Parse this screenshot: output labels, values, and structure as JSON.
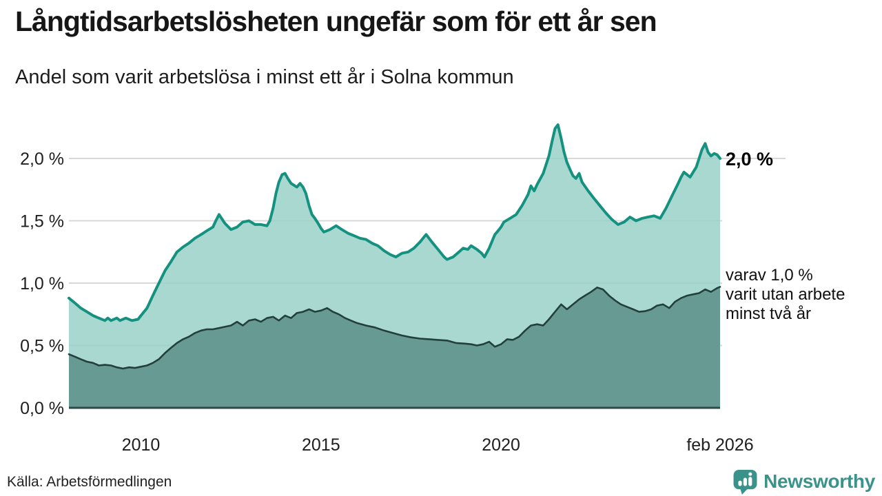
{
  "footer": {
    "source": "Källa: Arbetsförmedlingen",
    "brand": "Newsworthy",
    "brand_color": "#3a938a"
  },
  "chart_data": {
    "type": "area",
    "title": "Långtidsarbetslösheten ungefär som för ett år sen",
    "subtitle": "Andel som varit arbetslösa i minst ett år i Solna kommun",
    "unit": "%",
    "xlim": [
      2008.0,
      2026.083
    ],
    "ylim": [
      0,
      2.3
    ],
    "grid": true,
    "legend_position": "right-annotations",
    "colors": {
      "grid": "#d8d8d8",
      "axis": "#2b4945",
      "tick_text": "#202020"
    },
    "y_ticks": [
      {
        "value": 0.0,
        "label": "0,0 %"
      },
      {
        "value": 0.5,
        "label": "0,5 %"
      },
      {
        "value": 1.0,
        "label": "1,0 %"
      },
      {
        "value": 1.5,
        "label": "1,5 %"
      },
      {
        "value": 2.0,
        "label": "2,0 %"
      }
    ],
    "x_ticks": [
      {
        "t": 2010,
        "label": "2010"
      },
      {
        "t": 2015,
        "label": "2015"
      },
      {
        "t": 2020,
        "label": "2020"
      },
      {
        "t": 2026.083,
        "label": "feb 2026"
      }
    ],
    "annotations": [
      {
        "id": "latest-total",
        "text": "2,0 %",
        "value": 2.0
      },
      {
        "id": "latest-two-years",
        "line1": "varav 1,0 %",
        "line2": "varit utan arbete",
        "line3": "minst två år",
        "value": 1.0
      }
    ],
    "series": [
      {
        "id": "minst-ett-ar",
        "name": "Arbetslösa minst ett år",
        "color": "#159180",
        "width": 4,
        "fill": "#9ad1c9",
        "fill_opacity": 0.85,
        "latest_value": 2.0,
        "points": [
          [
            2008.0,
            0.88
          ],
          [
            2008.17,
            0.84
          ],
          [
            2008.33,
            0.8
          ],
          [
            2008.5,
            0.77
          ],
          [
            2008.67,
            0.74
          ],
          [
            2008.83,
            0.72
          ],
          [
            2009.0,
            0.7
          ],
          [
            2009.08,
            0.72
          ],
          [
            2009.17,
            0.7
          ],
          [
            2009.33,
            0.72
          ],
          [
            2009.42,
            0.7
          ],
          [
            2009.58,
            0.72
          ],
          [
            2009.75,
            0.7
          ],
          [
            2009.92,
            0.71
          ],
          [
            2010.0,
            0.74
          ],
          [
            2010.17,
            0.8
          ],
          [
            2010.33,
            0.9
          ],
          [
            2010.5,
            1.0
          ],
          [
            2010.67,
            1.1
          ],
          [
            2010.83,
            1.17
          ],
          [
            2011.0,
            1.25
          ],
          [
            2011.17,
            1.29
          ],
          [
            2011.33,
            1.32
          ],
          [
            2011.5,
            1.36
          ],
          [
            2011.67,
            1.39
          ],
          [
            2011.83,
            1.42
          ],
          [
            2012.0,
            1.45
          ],
          [
            2012.08,
            1.5
          ],
          [
            2012.17,
            1.55
          ],
          [
            2012.33,
            1.48
          ],
          [
            2012.5,
            1.43
          ],
          [
            2012.67,
            1.45
          ],
          [
            2012.83,
            1.49
          ],
          [
            2013.0,
            1.5
          ],
          [
            2013.17,
            1.47
          ],
          [
            2013.33,
            1.47
          ],
          [
            2013.5,
            1.46
          ],
          [
            2013.58,
            1.5
          ],
          [
            2013.67,
            1.6
          ],
          [
            2013.75,
            1.72
          ],
          [
            2013.83,
            1.81
          ],
          [
            2013.92,
            1.87
          ],
          [
            2014.0,
            1.88
          ],
          [
            2014.08,
            1.84
          ],
          [
            2014.17,
            1.8
          ],
          [
            2014.33,
            1.77
          ],
          [
            2014.42,
            1.8
          ],
          [
            2014.5,
            1.77
          ],
          [
            2014.58,
            1.72
          ],
          [
            2014.67,
            1.62
          ],
          [
            2014.75,
            1.55
          ],
          [
            2014.83,
            1.52
          ],
          [
            2014.92,
            1.48
          ],
          [
            2015.0,
            1.44
          ],
          [
            2015.08,
            1.41
          ],
          [
            2015.25,
            1.43
          ],
          [
            2015.42,
            1.46
          ],
          [
            2015.58,
            1.43
          ],
          [
            2015.75,
            1.4
          ],
          [
            2015.92,
            1.38
          ],
          [
            2016.08,
            1.36
          ],
          [
            2016.25,
            1.35
          ],
          [
            2016.42,
            1.32
          ],
          [
            2016.58,
            1.3
          ],
          [
            2016.75,
            1.26
          ],
          [
            2016.92,
            1.23
          ],
          [
            2017.08,
            1.21
          ],
          [
            2017.25,
            1.24
          ],
          [
            2017.42,
            1.25
          ],
          [
            2017.58,
            1.28
          ],
          [
            2017.75,
            1.33
          ],
          [
            2017.92,
            1.39
          ],
          [
            2018.08,
            1.33
          ],
          [
            2018.25,
            1.27
          ],
          [
            2018.42,
            1.21
          ],
          [
            2018.5,
            1.19
          ],
          [
            2018.67,
            1.21
          ],
          [
            2018.83,
            1.25
          ],
          [
            2018.95,
            1.28
          ],
          [
            2019.08,
            1.27
          ],
          [
            2019.17,
            1.3
          ],
          [
            2019.33,
            1.27
          ],
          [
            2019.46,
            1.24
          ],
          [
            2019.54,
            1.21
          ],
          [
            2019.67,
            1.28
          ],
          [
            2019.83,
            1.39
          ],
          [
            2019.92,
            1.42
          ],
          [
            2020.0,
            1.45
          ],
          [
            2020.08,
            1.49
          ],
          [
            2020.25,
            1.52
          ],
          [
            2020.42,
            1.55
          ],
          [
            2020.58,
            1.62
          ],
          [
            2020.75,
            1.71
          ],
          [
            2020.83,
            1.78
          ],
          [
            2020.92,
            1.74
          ],
          [
            2021.0,
            1.79
          ],
          [
            2021.17,
            1.88
          ],
          [
            2021.33,
            2.02
          ],
          [
            2021.42,
            2.14
          ],
          [
            2021.5,
            2.24
          ],
          [
            2021.58,
            2.27
          ],
          [
            2021.67,
            2.16
          ],
          [
            2021.75,
            2.05
          ],
          [
            2021.83,
            1.97
          ],
          [
            2021.92,
            1.91
          ],
          [
            2022.0,
            1.86
          ],
          [
            2022.08,
            1.84
          ],
          [
            2022.17,
            1.88
          ],
          [
            2022.25,
            1.81
          ],
          [
            2022.42,
            1.74
          ],
          [
            2022.58,
            1.68
          ],
          [
            2022.75,
            1.62
          ],
          [
            2022.92,
            1.56
          ],
          [
            2023.08,
            1.51
          ],
          [
            2023.25,
            1.47
          ],
          [
            2023.42,
            1.49
          ],
          [
            2023.58,
            1.53
          ],
          [
            2023.75,
            1.5
          ],
          [
            2023.92,
            1.52
          ],
          [
            2024.08,
            1.53
          ],
          [
            2024.25,
            1.54
          ],
          [
            2024.42,
            1.52
          ],
          [
            2024.58,
            1.6
          ],
          [
            2024.75,
            1.7
          ],
          [
            2024.92,
            1.8
          ],
          [
            2025.0,
            1.85
          ],
          [
            2025.08,
            1.89
          ],
          [
            2025.25,
            1.85
          ],
          [
            2025.42,
            1.93
          ],
          [
            2025.58,
            2.07
          ],
          [
            2025.67,
            2.12
          ],
          [
            2025.75,
            2.05
          ],
          [
            2025.83,
            2.02
          ],
          [
            2025.92,
            2.04
          ],
          [
            2026.0,
            2.03
          ],
          [
            2026.083,
            2.0
          ]
        ]
      },
      {
        "id": "minst-tva-ar",
        "name": "varav utan arbete minst två år",
        "color": "#223f3b",
        "width": 2.6,
        "fill": "#63958e",
        "fill_opacity": 0.92,
        "latest_value": 1.0,
        "points": [
          [
            2008.0,
            0.43
          ],
          [
            2008.17,
            0.41
          ],
          [
            2008.33,
            0.39
          ],
          [
            2008.5,
            0.37
          ],
          [
            2008.67,
            0.36
          ],
          [
            2008.83,
            0.34
          ],
          [
            2009.0,
            0.345
          ],
          [
            2009.17,
            0.34
          ],
          [
            2009.33,
            0.325
          ],
          [
            2009.5,
            0.315
          ],
          [
            2009.67,
            0.325
          ],
          [
            2009.83,
            0.32
          ],
          [
            2010.0,
            0.33
          ],
          [
            2010.17,
            0.34
          ],
          [
            2010.33,
            0.36
          ],
          [
            2010.5,
            0.39
          ],
          [
            2010.67,
            0.44
          ],
          [
            2010.83,
            0.48
          ],
          [
            2011.0,
            0.52
          ],
          [
            2011.17,
            0.55
          ],
          [
            2011.33,
            0.57
          ],
          [
            2011.5,
            0.6
          ],
          [
            2011.67,
            0.62
          ],
          [
            2011.83,
            0.63
          ],
          [
            2012.0,
            0.63
          ],
          [
            2012.17,
            0.64
          ],
          [
            2012.33,
            0.65
          ],
          [
            2012.5,
            0.66
          ],
          [
            2012.67,
            0.69
          ],
          [
            2012.83,
            0.66
          ],
          [
            2013.0,
            0.7
          ],
          [
            2013.17,
            0.71
          ],
          [
            2013.33,
            0.69
          ],
          [
            2013.5,
            0.72
          ],
          [
            2013.67,
            0.73
          ],
          [
            2013.83,
            0.7
          ],
          [
            2014.0,
            0.74
          ],
          [
            2014.17,
            0.72
          ],
          [
            2014.33,
            0.76
          ],
          [
            2014.5,
            0.77
          ],
          [
            2014.67,
            0.79
          ],
          [
            2014.83,
            0.77
          ],
          [
            2015.0,
            0.78
          ],
          [
            2015.17,
            0.8
          ],
          [
            2015.33,
            0.77
          ],
          [
            2015.5,
            0.75
          ],
          [
            2015.67,
            0.72
          ],
          [
            2015.83,
            0.7
          ],
          [
            2016.0,
            0.68
          ],
          [
            2016.25,
            0.66
          ],
          [
            2016.5,
            0.645
          ],
          [
            2016.75,
            0.62
          ],
          [
            2017.0,
            0.6
          ],
          [
            2017.25,
            0.58
          ],
          [
            2017.5,
            0.565
          ],
          [
            2017.75,
            0.555
          ],
          [
            2018.0,
            0.55
          ],
          [
            2018.25,
            0.545
          ],
          [
            2018.5,
            0.54
          ],
          [
            2018.75,
            0.52
          ],
          [
            2019.0,
            0.515
          ],
          [
            2019.17,
            0.51
          ],
          [
            2019.33,
            0.5
          ],
          [
            2019.5,
            0.51
          ],
          [
            2019.67,
            0.53
          ],
          [
            2019.83,
            0.49
          ],
          [
            2020.0,
            0.51
          ],
          [
            2020.17,
            0.55
          ],
          [
            2020.33,
            0.545
          ],
          [
            2020.5,
            0.57
          ],
          [
            2020.67,
            0.62
          ],
          [
            2020.83,
            0.66
          ],
          [
            2021.0,
            0.67
          ],
          [
            2021.17,
            0.66
          ],
          [
            2021.33,
            0.71
          ],
          [
            2021.5,
            0.77
          ],
          [
            2021.67,
            0.83
          ],
          [
            2021.83,
            0.79
          ],
          [
            2022.0,
            0.83
          ],
          [
            2022.17,
            0.87
          ],
          [
            2022.33,
            0.9
          ],
          [
            2022.5,
            0.93
          ],
          [
            2022.67,
            0.965
          ],
          [
            2022.83,
            0.95
          ],
          [
            2023.0,
            0.9
          ],
          [
            2023.17,
            0.86
          ],
          [
            2023.33,
            0.83
          ],
          [
            2023.5,
            0.81
          ],
          [
            2023.67,
            0.79
          ],
          [
            2023.83,
            0.77
          ],
          [
            2024.0,
            0.775
          ],
          [
            2024.17,
            0.79
          ],
          [
            2024.33,
            0.82
          ],
          [
            2024.5,
            0.83
          ],
          [
            2024.67,
            0.8
          ],
          [
            2024.83,
            0.85
          ],
          [
            2025.0,
            0.88
          ],
          [
            2025.17,
            0.9
          ],
          [
            2025.33,
            0.91
          ],
          [
            2025.5,
            0.92
          ],
          [
            2025.67,
            0.95
          ],
          [
            2025.83,
            0.93
          ],
          [
            2026.0,
            0.96
          ],
          [
            2026.083,
            0.97
          ]
        ]
      }
    ]
  }
}
